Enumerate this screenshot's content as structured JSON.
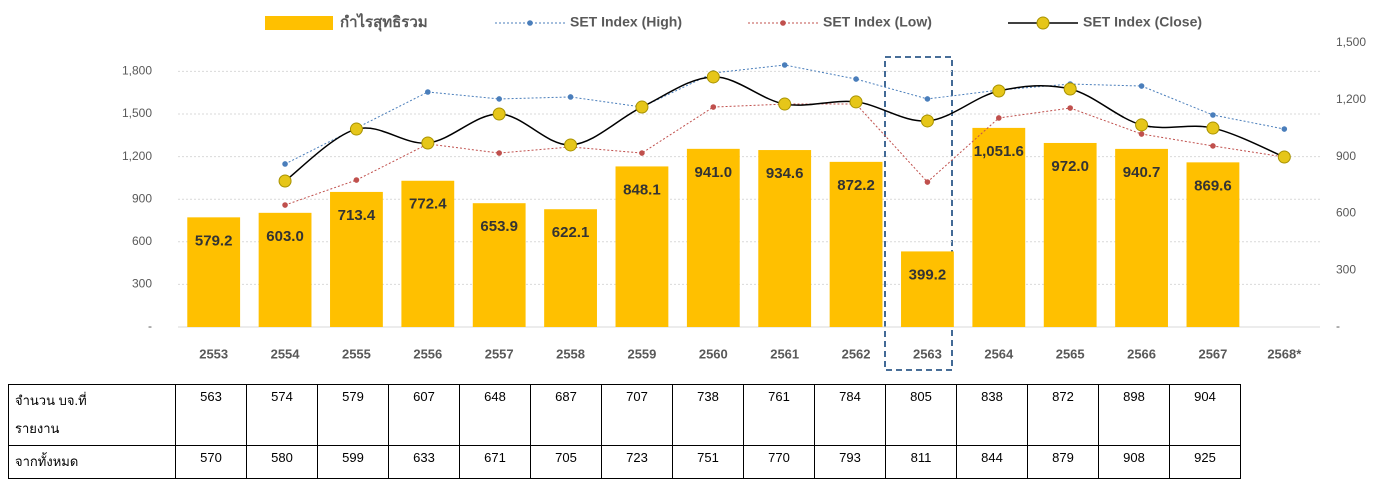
{
  "chart_data": {
    "type": "combo",
    "categories": [
      "2553",
      "2554",
      "2555",
      "2556",
      "2557",
      "2558",
      "2559",
      "2560",
      "2561",
      "2562",
      "2563",
      "2564",
      "2565",
      "2566",
      "2567",
      "2568*"
    ],
    "ylim": [
      0,
      2000
    ],
    "yticks": [
      {
        "value": 0,
        "label": "-"
      },
      300,
      600,
      900,
      {
        "value": 1200,
        "label": "1,200"
      },
      {
        "value": 1500,
        "label": "1,500"
      },
      {
        "value": 1800,
        "label": "1,800"
      }
    ],
    "y2lim": [
      0,
      1500
    ],
    "y2ticks": [
      {
        "value": 0,
        "label": "-"
      },
      300,
      600,
      900,
      {
        "value": 1200,
        "label": "1,200"
      },
      {
        "value": 1500,
        "label": "1,500"
      }
    ],
    "grid": true,
    "series": [
      {
        "name": "กำไรสุทธิรวม",
        "type": "bar",
        "axis": "y2",
        "color": "#ffc000",
        "values": [
          579.2,
          603.0,
          713.4,
          772.4,
          653.9,
          622.1,
          848.1,
          941.0,
          934.6,
          872.2,
          399.2,
          1051.6,
          972.0,
          940.7,
          869.6,
          null
        ],
        "value_labels": [
          "579.2",
          "603.0",
          "713.4",
          "772.4",
          "653.9",
          "622.1",
          "848.1",
          "941.0",
          "934.6",
          "872.2",
          "399.2",
          "1,051.6",
          "972.0",
          "940.7",
          "869.6",
          null
        ]
      },
      {
        "name": "SET Index (High)",
        "type": "line",
        "style": "dotted",
        "color": "#4a7ebb",
        "values": [
          null,
          1148,
          1401,
          1655,
          1606,
          1620,
          1549,
          1789,
          1845,
          1746,
          1606,
          1669,
          1711,
          1697,
          1493,
          1394
        ]
      },
      {
        "name": "SET Index (Low)",
        "type": "line",
        "style": "dotted",
        "color": "#c0504d",
        "values": [
          null,
          859,
          1035,
          1289,
          1225,
          1268,
          1225,
          1549,
          1570,
          1570,
          1021,
          1472,
          1542,
          1359,
          1275,
          1197
        ]
      },
      {
        "name": "SET Index (Close)",
        "type": "line",
        "style": "smooth",
        "color": "#000000",
        "marker_color": "#e6c619",
        "values": [
          null,
          1028,
          1394,
          1296,
          1500,
          1282,
          1549,
          1761,
          1570,
          1585,
          1451,
          1662,
          1676,
          1423,
          1401,
          1197
        ]
      }
    ]
  },
  "table": {
    "rows": [
      {
        "label": "จำนวน บจ.ที่ รายงาน",
        "values": [
          563,
          574,
          579,
          607,
          648,
          687,
          707,
          738,
          761,
          784,
          805,
          838,
          872,
          898,
          904
        ]
      },
      {
        "label": "จากทั้งหมด",
        "values": [
          570,
          580,
          599,
          633,
          671,
          705,
          723,
          751,
          770,
          793,
          811,
          844,
          879,
          908,
          925
        ]
      }
    ]
  }
}
